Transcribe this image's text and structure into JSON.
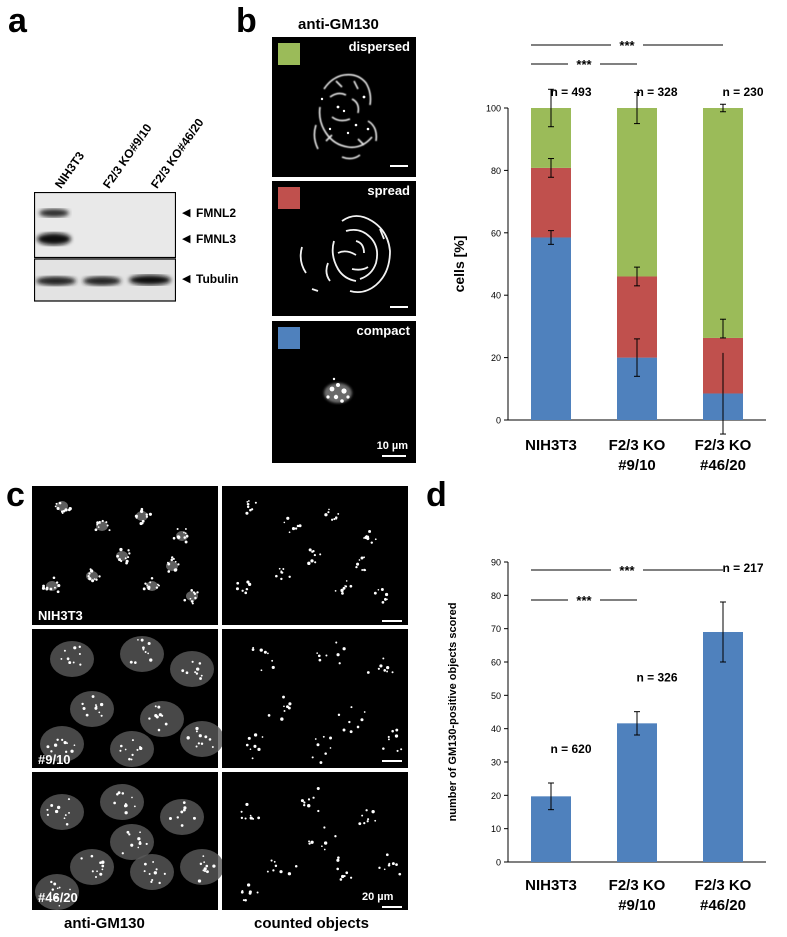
{
  "panels": {
    "a": {
      "letter": "a",
      "lanes": [
        "NIH3T3",
        "F2/3 KO#9/10",
        "F2/3 KO#46/20"
      ],
      "bands": [
        "FMNL2",
        "FMNL3",
        "Tubulin"
      ]
    },
    "b": {
      "letter": "b",
      "title": "anti-GM130",
      "categories": [
        "dispersed",
        "spread",
        "compact"
      ],
      "category_colors": {
        "dispersed": "#9bbb59",
        "spread": "#c0504d",
        "compact": "#4f81bd"
      },
      "scale_label": "10 µm"
    },
    "c": {
      "letter": "c",
      "row_labels": [
        "NIH3T3",
        "#9/10",
        "#46/20"
      ],
      "col_labels": [
        "anti-GM130",
        "counted objects"
      ],
      "scale_label": "20 µm"
    },
    "d": {
      "letter": "d"
    }
  },
  "chart_data": [
    {
      "type": "bar",
      "stacked": true,
      "categories": [
        "NIH3T3",
        "F2/3 KO\n#9/10",
        "F2/3 KO\n#46/20"
      ],
      "category_lines": [
        [
          "NIH3T3"
        ],
        [
          "F2/3 KO",
          "#9/10"
        ],
        [
          "F2/3 KO",
          "#46/20"
        ]
      ],
      "series": [
        {
          "name": "compact",
          "values": [
            58.5,
            20,
            8.5
          ],
          "err_top": [
            2.2,
            6.0,
            0
          ],
          "err_bot": [
            2.2,
            6.0,
            0
          ],
          "color": "#4f81bd"
        },
        {
          "name": "spread",
          "values": [
            22.3,
            26,
            17.8
          ],
          "err_top": [
            3,
            3,
            6
          ],
          "err_bot": [
            3,
            3,
            0
          ],
          "color": "#c0504d"
        },
        {
          "name": "dispersed",
          "values": [
            19.2,
            54,
            73.7
          ],
          "err_top": [
            6,
            5,
            1.2
          ],
          "err_bot": [
            6,
            5,
            1.2
          ],
          "color": "#9bbb59"
        }
      ],
      "extra_err": {
        "index": 2,
        "center": 8.5,
        "low": -4.5,
        "high": 21.5
      },
      "ylabel": "cells [%]",
      "ylim": [
        0,
        100
      ],
      "yticks": [
        0,
        20,
        40,
        60,
        80,
        100
      ],
      "n_labels": [
        "n = 493",
        "n = 328",
        "n = 230"
      ],
      "significance": [
        {
          "from": 0,
          "to": 2,
          "label": "***"
        },
        {
          "from": 0,
          "to": 1,
          "label": "***"
        }
      ]
    },
    {
      "type": "bar",
      "categories": [
        "NIH3T3",
        "F2/3 KO\n#9/10",
        "F2/3 KO\n#46/20"
      ],
      "category_lines": [
        [
          "NIH3T3"
        ],
        [
          "F2/3 KO",
          "#9/10"
        ],
        [
          "F2/3 KO",
          "#46/20"
        ]
      ],
      "values": [
        19.7,
        41.6,
        69
      ],
      "errors": [
        4.0,
        3.5,
        9.0
      ],
      "color": "#4f81bd",
      "ylabel": "number of GM130-positive objects scored",
      "ylim": [
        0,
        90
      ],
      "yticks": [
        0,
        10,
        20,
        30,
        40,
        50,
        60,
        70,
        80,
        90
      ],
      "n_labels": [
        "n = 620",
        "n = 326",
        "n = 217"
      ],
      "significance": [
        {
          "from": 0,
          "to": 2,
          "label": "***"
        },
        {
          "from": 0,
          "to": 1,
          "label": "***"
        }
      ]
    }
  ]
}
